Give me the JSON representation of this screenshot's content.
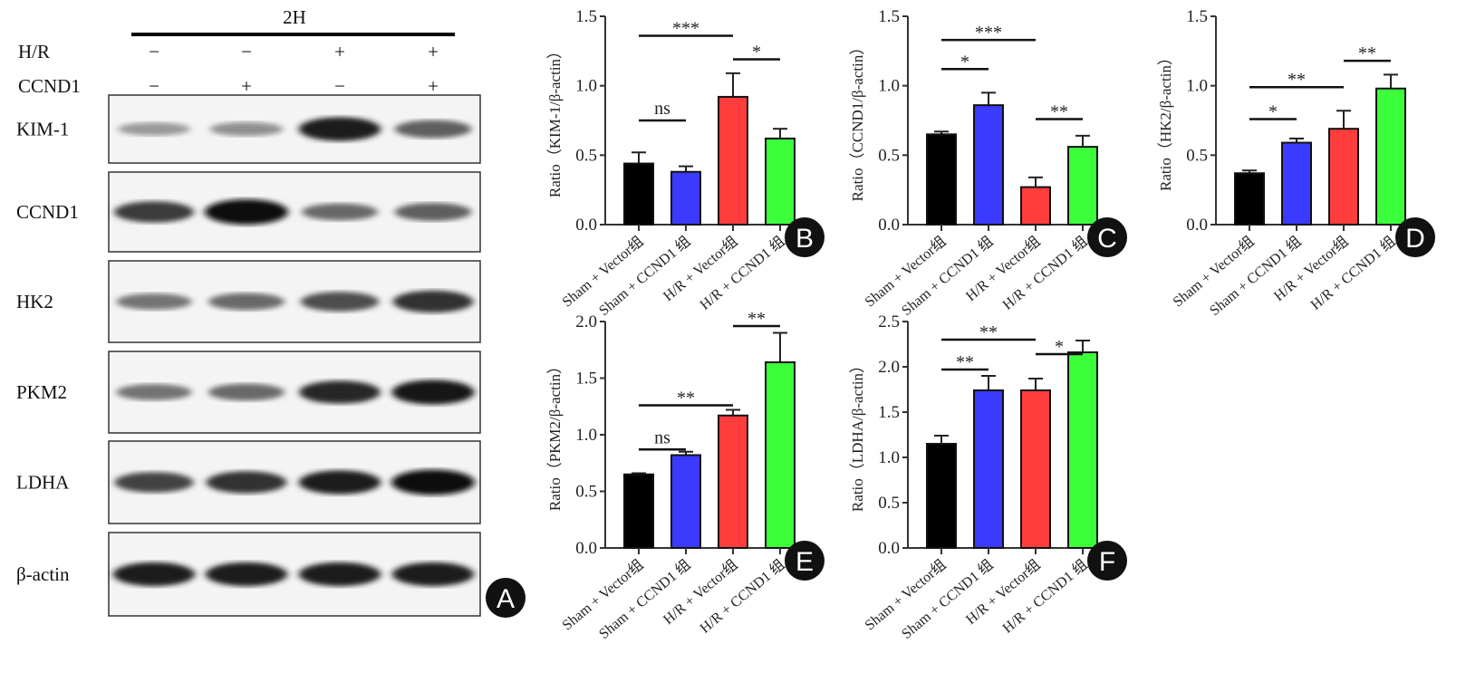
{
  "blot": {
    "header": "2H",
    "conditions": [
      {
        "name": "H/R",
        "signs": [
          "−",
          "−",
          "+",
          "+"
        ]
      },
      {
        "name": "CCND1",
        "signs": [
          "−",
          "+",
          "−",
          "+"
        ]
      }
    ],
    "rows": [
      {
        "name": "KIM-1",
        "intensity": [
          0.25,
          0.3,
          0.9,
          0.55
        ]
      },
      {
        "name": "CCND1",
        "intensity": [
          0.75,
          1.0,
          0.5,
          0.55
        ]
      },
      {
        "name": "HK2",
        "intensity": [
          0.45,
          0.5,
          0.65,
          0.8
        ]
      },
      {
        "name": "PKM2",
        "intensity": [
          0.45,
          0.5,
          0.85,
          0.95
        ]
      },
      {
        "name": "LDHA",
        "intensity": [
          0.7,
          0.8,
          0.9,
          1.0
        ]
      },
      {
        "name": "β-actin",
        "intensity": [
          0.9,
          0.9,
          0.9,
          0.9
        ]
      }
    ],
    "letter": "A"
  },
  "chart_data": [
    {
      "type": "bar",
      "letter": "B",
      "ylabel": "Ratio（KIM-1/β-actin）",
      "ylim": [
        0,
        1.5
      ],
      "ticks": [
        "0.0",
        "0.5",
        "1.0",
        "1.5"
      ],
      "tick_values": [
        0,
        0.5,
        1,
        1.5
      ],
      "categories": [
        "Sham + Vector组",
        "Sham + CCND1 组",
        "H/R + Vector组",
        "H/R + CCND1 组"
      ],
      "values": [
        0.44,
        0.38,
        0.92,
        0.62
      ],
      "errors": [
        0.08,
        0.04,
        0.17,
        0.07
      ],
      "sig": [
        {
          "from": 0,
          "to": 1,
          "y": 0.75,
          "label": "ns"
        },
        {
          "from": 0,
          "to": 2,
          "y": 1.36,
          "label": "***"
        },
        {
          "from": 2,
          "to": 3,
          "y": 1.19,
          "label": "*"
        }
      ]
    },
    {
      "type": "bar",
      "letter": "C",
      "ylabel": "Ratio（CCND1/β-actin）",
      "ylim": [
        0,
        1.5
      ],
      "ticks": [
        "0.0",
        "0.5",
        "1.0",
        "1.5"
      ],
      "tick_values": [
        0,
        0.5,
        1,
        1.5
      ],
      "categories": [
        "Sham + Vector组",
        "Sham + CCND1 组",
        "H/R + Vector组",
        "H/R + CCND1 组"
      ],
      "values": [
        0.65,
        0.86,
        0.27,
        0.56
      ],
      "errors": [
        0.02,
        0.09,
        0.07,
        0.08
      ],
      "sig": [
        {
          "from": 0,
          "to": 1,
          "y": 1.12,
          "label": "*"
        },
        {
          "from": 0,
          "to": 2,
          "y": 1.33,
          "label": "***"
        },
        {
          "from": 2,
          "to": 3,
          "y": 0.76,
          "label": "**"
        }
      ]
    },
    {
      "type": "bar",
      "letter": "D",
      "ylabel": "Ratio（HK2/β-actin）",
      "ylim": [
        0,
        1.5
      ],
      "ticks": [
        "0.0",
        "0.5",
        "1.0",
        "1.5"
      ],
      "tick_values": [
        0,
        0.5,
        1,
        1.5
      ],
      "categories": [
        "Sham + Vector组",
        "Sham + CCND1 组",
        "H/R + Vector组",
        "H/R + CCND1 组"
      ],
      "values": [
        0.37,
        0.59,
        0.69,
        0.98
      ],
      "errors": [
        0.02,
        0.03,
        0.13,
        0.1
      ],
      "sig": [
        {
          "from": 0,
          "to": 1,
          "y": 0.76,
          "label": "*"
        },
        {
          "from": 0,
          "to": 2,
          "y": 0.99,
          "label": "**"
        },
        {
          "from": 2,
          "to": 3,
          "y": 1.18,
          "label": "**"
        }
      ]
    },
    {
      "type": "bar",
      "letter": "E",
      "ylabel": "Ratio（PKM2/β-actin）",
      "ylim": [
        0,
        2.0
      ],
      "ticks": [
        "0.0",
        "0.5",
        "1.0",
        "1.5",
        "2.0"
      ],
      "tick_values": [
        0,
        0.5,
        1,
        1.5,
        2
      ],
      "categories": [
        "Sham + Vector组",
        "Sham + CCND1 组",
        "H/R + Vector组",
        "H/R + CCND1 组"
      ],
      "values": [
        0.65,
        0.82,
        1.17,
        1.64
      ],
      "errors": [
        0.01,
        0.03,
        0.05,
        0.26
      ],
      "sig": [
        {
          "from": 0,
          "to": 1,
          "y": 0.87,
          "label": "ns"
        },
        {
          "from": 0,
          "to": 2,
          "y": 1.26,
          "label": "**"
        },
        {
          "from": 2,
          "to": 3,
          "y": 1.96,
          "label": "**"
        }
      ]
    },
    {
      "type": "bar",
      "letter": "F",
      "ylabel": "Ratio（LDHA/β-actin）",
      "ylim": [
        0,
        2.5
      ],
      "ticks": [
        "0.0",
        "0.5",
        "1.0",
        "1.5",
        "2.0",
        "2.5"
      ],
      "tick_values": [
        0,
        0.5,
        1,
        1.5,
        2,
        2.5
      ],
      "categories": [
        "Sham + Vector组",
        "Sham + CCND1 组",
        "H/R + Vector组",
        "H/R + CCND1 组"
      ],
      "values": [
        1.15,
        1.74,
        1.74,
        2.16
      ],
      "errors": [
        0.09,
        0.16,
        0.13,
        0.13
      ],
      "sig": [
        {
          "from": 0,
          "to": 1,
          "y": 1.97,
          "label": "**"
        },
        {
          "from": 0,
          "to": 2,
          "y": 2.3,
          "label": "**"
        },
        {
          "from": 2,
          "to": 3,
          "y": 2.14,
          "label": "*"
        }
      ]
    }
  ],
  "colors": [
    "#000000",
    "#3b3bff",
    "#ff3d3d",
    "#3cff3c"
  ]
}
